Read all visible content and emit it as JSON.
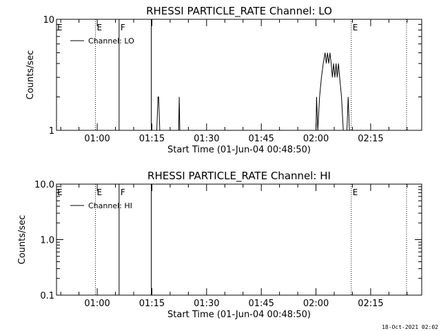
{
  "colors": {
    "background": "#ffffff",
    "foreground": "#000000"
  },
  "footer": {
    "timestamp": "18-Oct-2021 02:02"
  },
  "chart_data": [
    {
      "type": "line",
      "title": "RHESSI PARTICLE_RATE Channel: LO",
      "xlabel": "Start Time (01-Jun-04 00:48:50)",
      "ylabel": "Counts/sec",
      "yscale": "log",
      "ylim": [
        1,
        10
      ],
      "y_ticks": [
        {
          "v": 1,
          "label": "1"
        },
        {
          "v": 10,
          "label": "10"
        }
      ],
      "xlim": [
        "00:48:50",
        "02:29:00"
      ],
      "x_ticks": [
        "01:00",
        "01:15",
        "01:30",
        "01:45",
        "02:00",
        "02:15"
      ],
      "legend": {
        "position": "top-left",
        "entries": [
          "Channel: LO"
        ]
      },
      "markers": [
        {
          "time": "00:59:30",
          "label": "E",
          "style": "dotted"
        },
        {
          "time": "01:06:00",
          "label": "F",
          "style": "solid"
        },
        {
          "time": "01:14:50",
          "label": "",
          "style": "solid"
        },
        {
          "time": "02:09:40",
          "label": "E",
          "style": "dotted"
        },
        {
          "time": "02:24:50",
          "label": "",
          "style": "dotted"
        }
      ],
      "edge_labels": [
        {
          "time": "00:48:50",
          "label": "E"
        }
      ],
      "series": [
        {
          "name": "Channel: LO",
          "segments": [
            [
              [
                "01:16:20",
                1
              ],
              [
                "01:16:40",
                2
              ],
              [
                "01:16:50",
                2
              ],
              [
                "01:17:10",
                1
              ]
            ],
            [
              [
                "01:22:20",
                1
              ],
              [
                "01:22:30",
                2
              ],
              [
                "01:22:40",
                1
              ]
            ],
            [
              [
                "02:00:00",
                1
              ],
              [
                "02:00:10",
                2
              ],
              [
                "02:00:30",
                1
              ],
              [
                "02:01:00",
                2
              ],
              [
                "02:01:30",
                3
              ],
              [
                "02:02:00",
                4
              ],
              [
                "02:02:30",
                5
              ],
              [
                "02:02:50",
                4
              ],
              [
                "02:03:10",
                5
              ],
              [
                "02:03:30",
                4
              ],
              [
                "02:03:50",
                5
              ],
              [
                "02:04:10",
                4
              ],
              [
                "02:04:30",
                3
              ],
              [
                "02:04:50",
                4
              ],
              [
                "02:05:10",
                3
              ],
              [
                "02:05:30",
                4
              ],
              [
                "02:05:50",
                3
              ],
              [
                "02:06:10",
                4
              ],
              [
                "02:06:30",
                3
              ],
              [
                "02:07:00",
                2
              ],
              [
                "02:07:30",
                1
              ]
            ],
            [
              [
                "02:08:30",
                1
              ],
              [
                "02:08:50",
                2
              ],
              [
                "02:09:10",
                1
              ]
            ]
          ]
        }
      ]
    },
    {
      "type": "line",
      "title": "RHESSI PARTICLE_RATE Channel: HI",
      "xlabel": "Start Time (01-Jun-04 00:48:50)",
      "ylabel": "Counts/sec",
      "yscale": "log",
      "ylim": [
        0.1,
        10
      ],
      "y_ticks": [
        {
          "v": 0.1,
          "label": "0.1"
        },
        {
          "v": 1,
          "label": "1.0"
        },
        {
          "v": 10,
          "label": "10.0"
        }
      ],
      "xlim": [
        "00:48:50",
        "02:29:00"
      ],
      "x_ticks": [
        "01:00",
        "01:15",
        "01:30",
        "01:45",
        "02:00",
        "02:15"
      ],
      "legend": {
        "position": "top-left",
        "entries": [
          "Channel: HI"
        ]
      },
      "markers": [
        {
          "time": "00:59:30",
          "label": "E",
          "style": "dotted"
        },
        {
          "time": "01:06:00",
          "label": "F",
          "style": "solid"
        },
        {
          "time": "01:14:50",
          "label": "",
          "style": "solid"
        },
        {
          "time": "02:09:40",
          "label": "E",
          "style": "dotted"
        },
        {
          "time": "02:24:50",
          "label": "",
          "style": "dotted"
        }
      ],
      "edge_labels": [
        {
          "time": "00:48:50",
          "label": "E"
        }
      ],
      "series": [
        {
          "name": "Channel: HI",
          "segments": []
        }
      ]
    }
  ]
}
